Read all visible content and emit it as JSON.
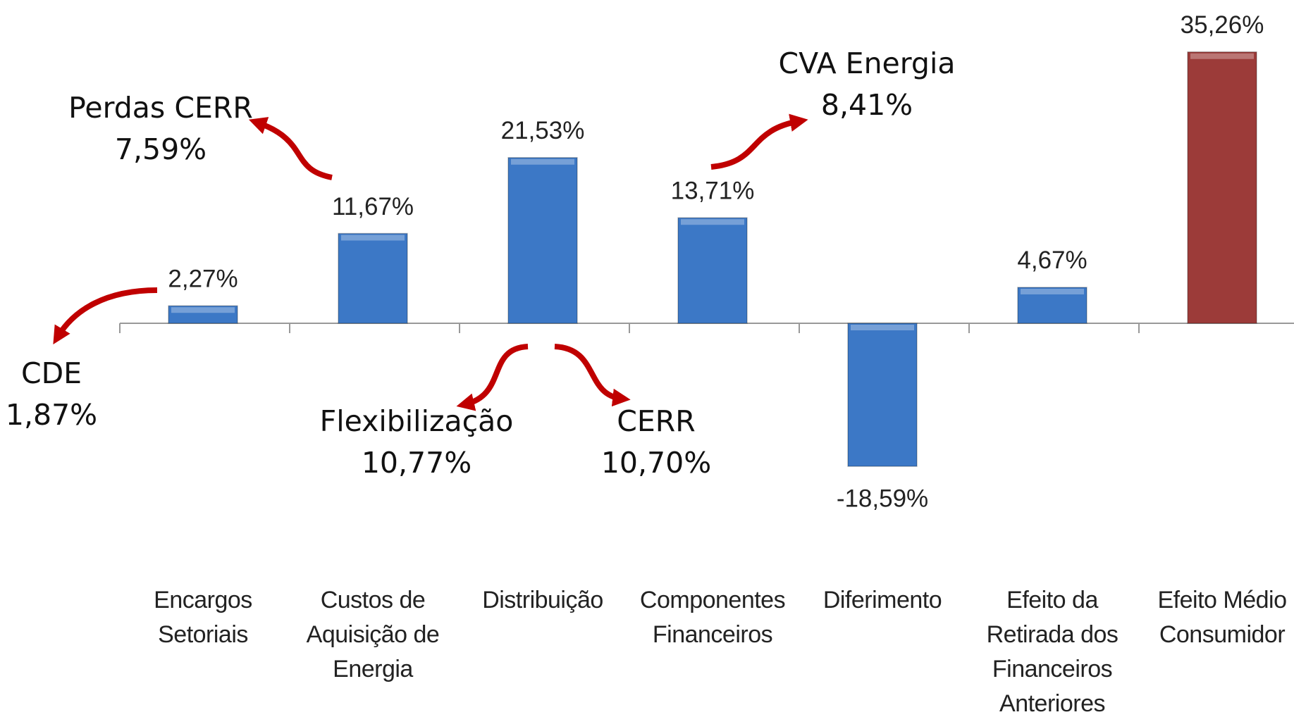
{
  "chart_data": {
    "type": "bar",
    "categories": [
      "Encargos Setoriais",
      "Custos de Aquisição de Energia",
      "Distribuição",
      "Componentes Financeiros",
      "Diferimento",
      "Efeito da Retirada dos Financeiros Anteriores",
      "Efeito Médio Consumidor"
    ],
    "values": [
      2.27,
      11.67,
      21.53,
      13.71,
      -18.59,
      4.67,
      35.26
    ],
    "value_labels": [
      "2,27%",
      "11,67%",
      "21,53%",
      "13,71%",
      "-18,59%",
      "4,67%",
      "35,26%"
    ],
    "colors": [
      "#3c78c6",
      "#3c78c6",
      "#3c78c6",
      "#3c78c6",
      "#3c78c6",
      "#3c78c6",
      "#9c3b39"
    ],
    "annotations": [
      {
        "name": "CDE",
        "label": "1,87%"
      },
      {
        "name": "Perdas CERR",
        "label": "7,59%"
      },
      {
        "name": "Flexibilização",
        "label": "10,77%"
      },
      {
        "name": "CERR",
        "label": "10,70%"
      },
      {
        "name": "CVA Energia",
        "label": "8,41%"
      }
    ]
  }
}
